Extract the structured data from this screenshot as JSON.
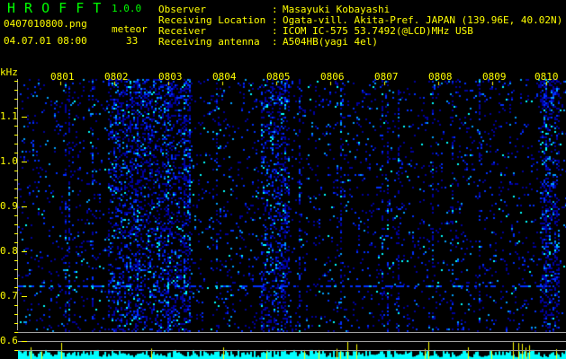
{
  "app": {
    "name": "H R O F F T",
    "version": "1.0.0"
  },
  "file": {
    "name": "0407010800.png",
    "datetime": "04.07.01 08:00"
  },
  "meteor": {
    "label": "meteor",
    "count": "33"
  },
  "info": [
    {
      "label": "Observer",
      "value": "Masayuki Kobayashi"
    },
    {
      "label": "Receiving Location",
      "value": "Ogata-vill. Akita-Pref. JAPAN (139.96E, 40.02N)"
    },
    {
      "label": "Receiver",
      "value": "ICOM IC-575 53.7492(@LCD)MHz USB"
    },
    {
      "label": "Receiving antenna",
      "value": "A504HB(yagi 4el)"
    }
  ],
  "yaxis": {
    "unit": "kHz",
    "ticks": [
      "1.1",
      "1.0",
      "0.9",
      "0.8",
      "0.7",
      "0.6"
    ]
  },
  "xaxis": {
    "ticks": [
      "0801",
      "0802",
      "0803",
      "0804",
      "0805",
      "0806",
      "0807",
      "0808",
      "0809",
      "0810"
    ]
  },
  "colors": {
    "text": "#ffff00",
    "title": "#00ff00",
    "background": "#000000",
    "histogram": "#00ffff",
    "histogram_peak": "#ffff00"
  }
}
